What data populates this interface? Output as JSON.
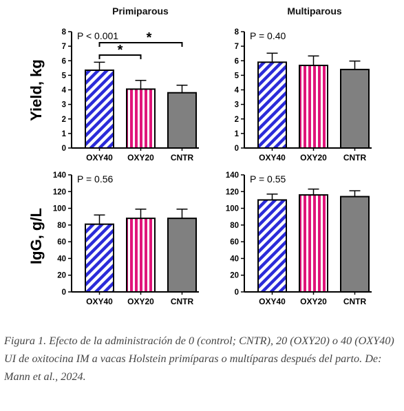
{
  "figure": {
    "col_titles": [
      "Primiparous",
      "Multiparous"
    ],
    "row_labels": [
      "Yield, kg",
      "IgG, g/L"
    ]
  },
  "caption": "Figura 1. Efecto de la administración de 0 (control; CNTR), 20 (OXY20) o 40 (OXY40) UI de oxitocina IM a vacas Holstein primíparas o multíparas después del parto. De: Mann et al., 2024.",
  "colors": {
    "OXY40": "#2b2bd9",
    "OXY20": "#e0157a",
    "CNTR": "#808080"
  },
  "chart_data": [
    {
      "type": "bar",
      "panel": "primiparous-yield",
      "categories": [
        "OXY40",
        "OXY20",
        "CNTR"
      ],
      "values": [
        5.35,
        4.05,
        3.8
      ],
      "errors": [
        0.55,
        0.6,
        0.52
      ],
      "ylim": [
        0,
        8
      ],
      "yticks": [
        "0",
        "1",
        "2",
        "3",
        "4",
        "5",
        "6",
        "7",
        "8"
      ],
      "annotations": [
        "P < 0.001",
        "*",
        "*"
      ]
    },
    {
      "type": "bar",
      "panel": "multiparous-yield",
      "categories": [
        "OXY40",
        "OXY20",
        "CNTR"
      ],
      "values": [
        5.9,
        5.68,
        5.4
      ],
      "errors": [
        0.62,
        0.65,
        0.58
      ],
      "ylim": [
        0,
        8
      ],
      "yticks": [
        "0",
        "1",
        "2",
        "3",
        "4",
        "5",
        "6",
        "7",
        "8"
      ],
      "annotations": [
        "P = 0.40"
      ]
    },
    {
      "type": "bar",
      "panel": "primiparous-igg",
      "categories": [
        "OXY40",
        "OXY20",
        "CNTR"
      ],
      "values": [
        81,
        88,
        88
      ],
      "errors": [
        11,
        11,
        11
      ],
      "ylim": [
        0,
        140
      ],
      "yticks": [
        "0",
        "20",
        "40",
        "60",
        "80",
        "100",
        "120",
        "140"
      ],
      "annotations": [
        "P = 0.56"
      ]
    },
    {
      "type": "bar",
      "panel": "multiparous-igg",
      "categories": [
        "OXY40",
        "OXY20",
        "CNTR"
      ],
      "values": [
        110,
        116,
        114
      ],
      "errors": [
        7,
        7,
        7
      ],
      "ylim": [
        0,
        140
      ],
      "yticks": [
        "0",
        "20",
        "40",
        "60",
        "80",
        "100",
        "120",
        "140"
      ],
      "annotations": [
        "P = 0.55"
      ]
    }
  ]
}
